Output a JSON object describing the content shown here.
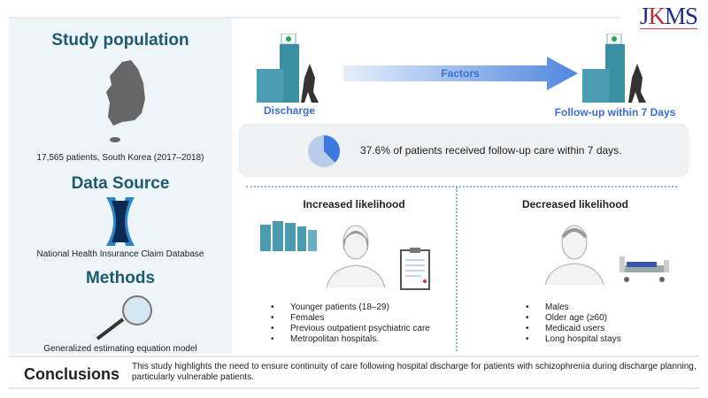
{
  "logo": {
    "text_a": "J",
    "text_b": "K",
    "text_c": "MS"
  },
  "left": {
    "study_population": {
      "title": "Study population",
      "caption": "17,565 patients, South Korea (2017–2018)",
      "icon": "korea-map-icon"
    },
    "data_source": {
      "title": "Data Source",
      "caption": "National Health Insurance Claim Database",
      "icon": "dna-x-icon"
    },
    "methods": {
      "title": "Methods",
      "caption": "Generalized estimating equation model",
      "icon": "magnifier-icon"
    }
  },
  "flow": {
    "start_label": "Discharge",
    "arrow_label": "Factors",
    "end_label": "Follow-up within 7 Days",
    "color": "#3b6fd4"
  },
  "summary": {
    "text": "37.6% of patients received follow-up care within 7 days.",
    "pie_fraction": 0.376,
    "pie_colors": [
      "#3d78de",
      "#b7cde9"
    ]
  },
  "increased": {
    "title": "Increased likelihood",
    "items": [
      "Younger patients (18–29)",
      "Females",
      "Previous outpatient psychiatric care",
      "Metropolitan hospitals."
    ]
  },
  "decreased": {
    "title": "Decreased likelihood",
    "items": [
      "Males",
      "Older age (≥60)",
      "Medicaid users",
      "Long hospital stays"
    ]
  },
  "conclusions": {
    "title": "Conclusions",
    "text": "This study highlights the need to ensure continuity of care following hospital discharge for patients with schizophrenia during discharge planning, particularly vulnerable patients."
  }
}
